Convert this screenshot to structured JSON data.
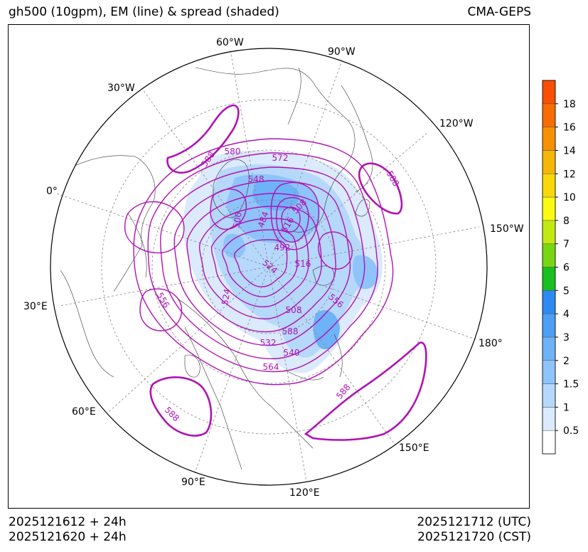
{
  "header": {
    "title": "gh500 (10gpm), EM (line) & spread (shaded)",
    "model": "CMA-GEPS"
  },
  "footer": {
    "init_utc": "2025121612 + 24h",
    "init_cst": "2025121620 + 24h",
    "valid_utc": "2025121712 (UTC)",
    "valid_cst": "2025121720 (CST)"
  },
  "map": {
    "projection": "north-polar-stereographic",
    "longitude_labels": [
      "60°W",
      "90°W",
      "30°W",
      "120°W",
      "0°",
      "150°W",
      "30°E",
      "180°",
      "60°E",
      "150°E",
      "90°E",
      "120°E"
    ]
  },
  "chart_data": {
    "type": "contour",
    "title": "gh500 (10gpm), EM (line) & spread (shaded)",
    "variable": "500 hPa geopotential height ensemble mean (dagpm)",
    "contour_labels": [
      "588",
      "580",
      "572",
      "548",
      "484",
      "508",
      "516",
      "500",
      "492",
      "524",
      "516",
      "524",
      "556",
      "556",
      "508",
      "532",
      "540",
      "564",
      "588",
      "588",
      "588",
      "588"
    ],
    "spread_colorbar": {
      "levels": [
        "0.5",
        "1",
        "1.5",
        "2",
        "3",
        "4",
        "5",
        "6",
        "7",
        "8",
        "10",
        "12",
        "14",
        "16",
        "18"
      ],
      "colors": [
        "#ffffff",
        "#dbeafc",
        "#b6d8fb",
        "#8ec4fa",
        "#6eb2f7",
        "#4d9ef5",
        "#2d8af2",
        "#18c020",
        "#78d612",
        "#c2ea10",
        "#fafa12",
        "#f8d808",
        "#f6b606",
        "#f79104",
        "#f86c04",
        "#fa4e02"
      ]
    }
  }
}
